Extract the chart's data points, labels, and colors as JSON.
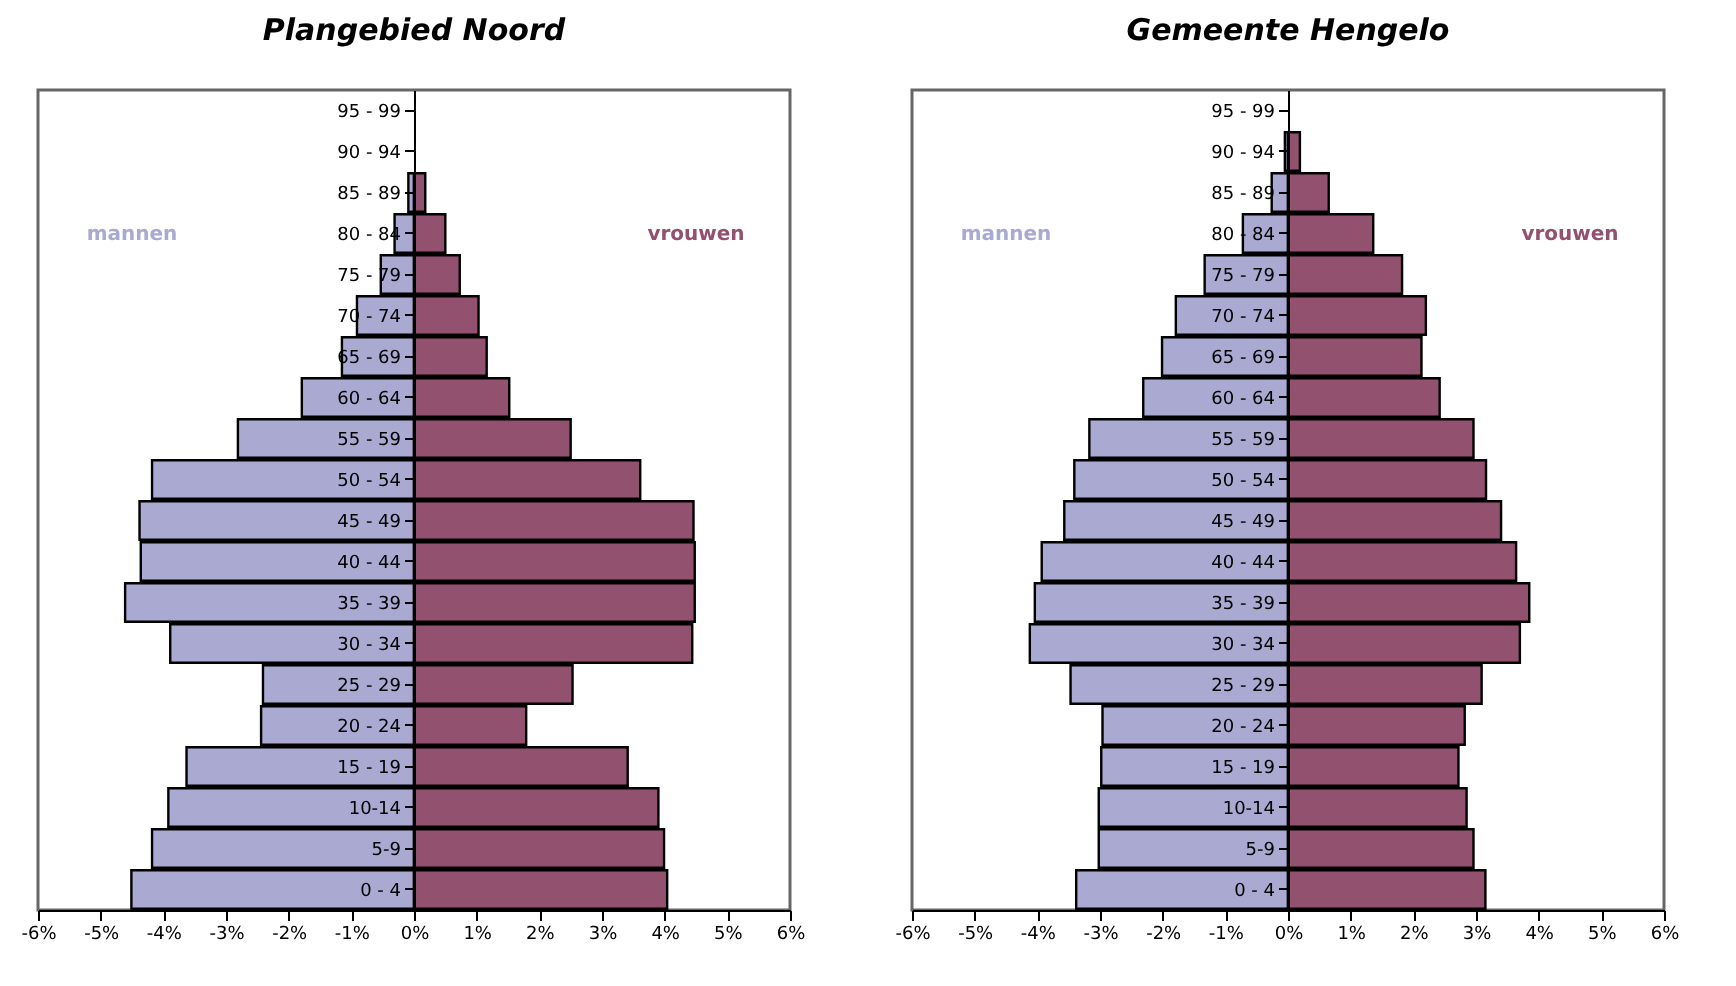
{
  "chart_data": [
    {
      "type": "bar",
      "title": "Plangebied Noord",
      "orientation": "horizontal",
      "stacked": true,
      "categories": [
        "95 - 99",
        "90 - 94",
        "85 - 89",
        "80 - 84",
        "75 - 79",
        "70 - 74",
        "65 - 69",
        "60 - 64",
        "55 - 59",
        "50 - 54",
        "45 - 49",
        "40 - 44",
        "35 - 39",
        "30 - 34",
        "25 - 29",
        "20 - 24",
        "15 - 19",
        "10-14",
        "5-9",
        "0 - 4"
      ],
      "series": [
        {
          "name": "mannen",
          "color": "#a9a9d1",
          "values": [
            0,
            0,
            -0.09,
            -0.31,
            -0.53,
            -0.91,
            -1.15,
            -1.79,
            -2.81,
            -4.18,
            -4.38,
            -4.36,
            -4.61,
            -3.89,
            -2.41,
            -2.44,
            -3.63,
            -3.92,
            -4.18,
            -4.51
          ]
        },
        {
          "name": "vrouwen",
          "color": "#92516f",
          "values": [
            0,
            0,
            0.18,
            0.5,
            0.73,
            1.03,
            1.16,
            1.52,
            2.5,
            3.61,
            4.46,
            4.48,
            4.48,
            4.44,
            2.53,
            1.79,
            3.41,
            3.9,
            3.99,
            4.04
          ]
        }
      ],
      "xlim": [
        -6,
        6
      ],
      "xticks": [
        {
          "value": -6,
          "label": "-6%"
        },
        {
          "value": -5,
          "label": "-5%"
        },
        {
          "value": -4,
          "label": "-4%"
        },
        {
          "value": -3,
          "label": "-3%"
        },
        {
          "value": -2,
          "label": "-2%"
        },
        {
          "value": -1,
          "label": "-1%"
        },
        {
          "value": 0,
          "label": "0%"
        },
        {
          "value": 1,
          "label": "1%"
        },
        {
          "value": 2,
          "label": "2%"
        },
        {
          "value": 3,
          "label": "3%"
        },
        {
          "value": 4,
          "label": "4%"
        },
        {
          "value": 5,
          "label": "5%"
        },
        {
          "value": 6,
          "label": "6%"
        }
      ]
    },
    {
      "type": "bar",
      "title": "Gemeente Hengelo",
      "orientation": "horizontal",
      "stacked": true,
      "categories": [
        "95 - 99",
        "90 - 94",
        "85 - 89",
        "80 - 84",
        "75 - 79",
        "70 - 74",
        "65 - 69",
        "60 - 64",
        "55 - 59",
        "50 - 54",
        "45 - 49",
        "40 - 44",
        "35 - 39",
        "30 - 34",
        "25 - 29",
        "20 - 24",
        "15 - 19",
        "10-14",
        "5-9",
        "0 - 4"
      ],
      "series": [
        {
          "name": "mannen",
          "color": "#a9a9d1",
          "values": [
            0,
            -0.05,
            -0.26,
            -0.72,
            -1.33,
            -1.79,
            -2.01,
            -2.31,
            -3.17,
            -3.41,
            -3.57,
            -3.93,
            -4.04,
            -4.12,
            -3.47,
            -2.96,
            -2.98,
            -3.02,
            -3.02,
            -3.38
          ]
        },
        {
          "name": "vrouwen",
          "color": "#92516f",
          "values": [
            0,
            0.19,
            0.65,
            1.36,
            1.82,
            2.2,
            2.13,
            2.42,
            2.96,
            3.16,
            3.4,
            3.64,
            3.85,
            3.7,
            3.09,
            2.82,
            2.72,
            2.85,
            2.96,
            3.15
          ]
        }
      ],
      "xlim": [
        -6,
        6
      ],
      "xticks": [
        {
          "value": -6,
          "label": "-6%"
        },
        {
          "value": -5,
          "label": "-5%"
        },
        {
          "value": -4,
          "label": "-4%"
        },
        {
          "value": -3,
          "label": "-3%"
        },
        {
          "value": -2,
          "label": "-2%"
        },
        {
          "value": -1,
          "label": "-1%"
        },
        {
          "value": 0,
          "label": "0%"
        },
        {
          "value": 1,
          "label": "1%"
        },
        {
          "value": 2,
          "label": "2%"
        },
        {
          "value": 3,
          "label": "3%"
        },
        {
          "value": 4,
          "label": "4%"
        },
        {
          "value": 5,
          "label": "5%"
        },
        {
          "value": 6,
          "label": "6%"
        }
      ]
    }
  ]
}
